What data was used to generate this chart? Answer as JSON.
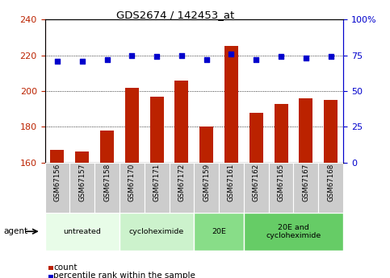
{
  "title": "GDS2674 / 142453_at",
  "categories": [
    "GSM67156",
    "GSM67157",
    "GSM67158",
    "GSM67170",
    "GSM67171",
    "GSM67172",
    "GSM67159",
    "GSM67161",
    "GSM67162",
    "GSM67165",
    "GSM67167",
    "GSM67168"
  ],
  "bar_values": [
    167,
    166,
    178,
    202,
    197,
    206,
    180,
    225,
    188,
    193,
    196,
    195
  ],
  "dot_values": [
    71,
    71,
    72,
    75,
    74,
    75,
    72,
    76,
    72,
    74,
    73,
    74
  ],
  "bar_color": "#bb2200",
  "dot_color": "#0000cc",
  "ylim_left": [
    160,
    240
  ],
  "ylim_right": [
    0,
    100
  ],
  "yticks_left": [
    160,
    180,
    200,
    220,
    240
  ],
  "yticks_right": [
    0,
    25,
    50,
    75,
    100
  ],
  "grid_lines": [
    180,
    200,
    220
  ],
  "agent_groups": [
    {
      "label": "untreated",
      "start": 0,
      "end": 3,
      "color": "#e8fce8"
    },
    {
      "label": "cycloheximide",
      "start": 3,
      "end": 6,
      "color": "#ccf2cc"
    },
    {
      "label": "20E",
      "start": 6,
      "end": 8,
      "color": "#88dd88"
    },
    {
      "label": "20E and\ncycloheximide",
      "start": 8,
      "end": 12,
      "color": "#66cc66"
    }
  ],
  "tick_bg_color": "#cccccc",
  "legend_count_label": "count",
  "legend_pct_label": "percentile rank within the sample",
  "agent_label": "agent",
  "bar_width": 0.55
}
